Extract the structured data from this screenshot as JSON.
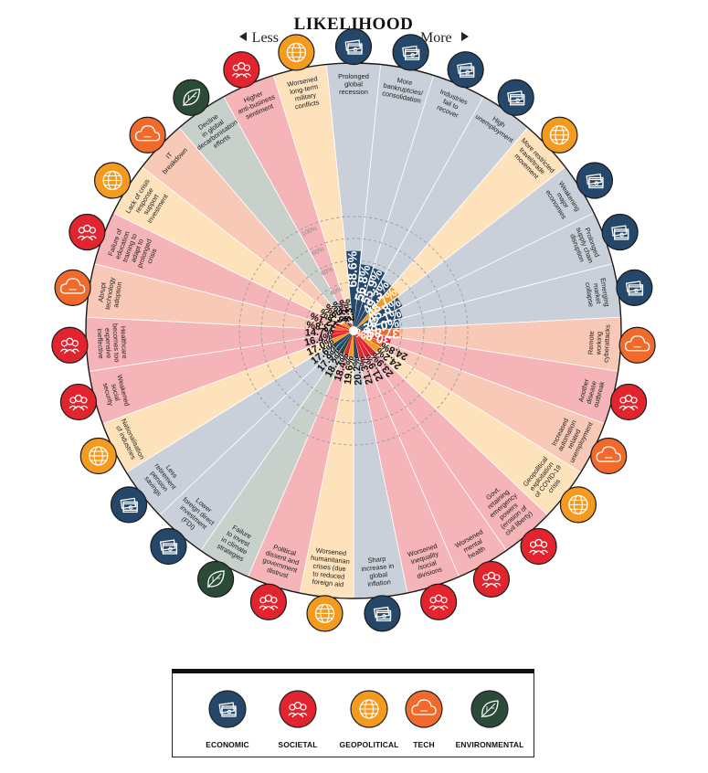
{
  "header": {
    "title": "LIKELIHOOD",
    "less": "Less",
    "more": "More"
  },
  "colors": {
    "economic": "#24476a",
    "societal": "#e2242e",
    "geopolitical": "#f39a1f",
    "tech": "#f26a2b",
    "environmental": "#2c4a38",
    "bg_economic": "#c9d0d9",
    "bg_societal": "#f4b4b8",
    "bg_geopolitical": "#fde2bb",
    "bg_tech": "#f8c9b6",
    "bg_environmental": "#c8d0cb"
  },
  "categories": {
    "economic": {
      "label": "ECONOMIC",
      "icon": "banknotes-icon"
    },
    "societal": {
      "label": "SOCIETAL",
      "icon": "people-icon"
    },
    "geopolitical": {
      "label": "GEOPOLITICAL",
      "icon": "globe-icon"
    },
    "tech": {
      "label": "TECH",
      "icon": "cloud-icon"
    },
    "environmental": {
      "label": "ENVIRONMENTAL",
      "icon": "leaf-icon"
    }
  },
  "legend_order": [
    "economic",
    "societal",
    "geopolitical",
    "tech",
    "environmental"
  ],
  "chart_data": {
    "type": "bar",
    "subtype": "radial",
    "value_unit": "%",
    "ring_labels": [
      "100%",
      "80%",
      "60%",
      "40%",
      "20%"
    ],
    "ring_values": [
      100,
      80,
      60,
      40,
      20
    ],
    "categories": [
      "Prolonged global recession",
      "More bankruptcies/ consolidation",
      "Industries fail to recover",
      "High unemployment",
      "More restricted travel/trade movement",
      "Weakening major economies",
      "Prolonged supply chain disruption",
      "Emerging market collapse",
      "Remote working cyberattacks",
      "Another disease outbreak",
      "Increased automation related unemployment",
      "Geopolitical exploitation of COVID-19 crisis",
      "Govt. retaining emergency powers (erosion of civil liberty)",
      "Worsened mental health",
      "Worsened inequality /social divisions",
      "Sharp increase in global inflation",
      "Worsened humanitarian crises (due to reduced foreign aid",
      "Political dissent and government distrust",
      "Failure to invest in climate strategies",
      "Lower foreign direct investment (FDI)",
      "Less retirement pension savings",
      "Nationalisation of industries",
      "Weakened social security",
      "Healthcare becomes too expensive ineffective",
      "Abrupt technology adoption",
      "Failure of education training to adapt to prolonged crisis",
      "Lack of crisis response support investment",
      "IT breakdown",
      "Decline in global decarbonisation efforts",
      "Higher anti-business sentiment",
      "Worsened long-term military conflicts"
    ],
    "values": [
      68.6,
      56.8,
      55.9,
      49.3,
      48.7,
      45.8,
      42.1,
      38.0,
      37.8,
      30.8,
      24.8,
      24.2,
      23.9,
      21.9,
      21.3,
      20.2,
      19.6,
      18.4,
      18.2,
      17.9,
      17.6,
      17.0,
      16.4,
      14.7,
      13.8,
      12.1,
      7.8,
      6.9,
      4.6,
      3.2,
      2.3
    ],
    "value_labels": [
      "68.6%",
      "56.8%",
      "55.9%",
      "49.3%",
      "48.7%",
      "45.8%",
      "42.1%",
      "38.0%",
      "37.8%",
      "30.8%",
      "24.8%",
      "24.2%",
      "23.9%",
      "21.9%",
      "21.3%",
      "20.2%",
      "19.6%",
      "18.4%",
      "18.2%",
      "17.9%",
      "17.6%",
      "17.0%",
      "16.4%",
      "14.7%",
      "13.8%",
      "12.1%",
      "7.8%",
      "6.9%",
      "4.6%",
      "3.2%",
      "2.3%"
    ],
    "category_type": [
      "economic",
      "economic",
      "economic",
      "economic",
      "geopolitical",
      "economic",
      "economic",
      "economic",
      "tech",
      "societal",
      "tech",
      "geopolitical",
      "societal",
      "societal",
      "societal",
      "economic",
      "geopolitical",
      "societal",
      "environmental",
      "economic",
      "economic",
      "geopolitical",
      "societal",
      "societal",
      "tech",
      "societal",
      "geopolitical",
      "tech",
      "environmental",
      "societal",
      "geopolitical"
    ],
    "label_lines": [
      [
        "Prolonged",
        "global",
        "recession"
      ],
      [
        "More",
        "bankruptcies/",
        "consolidation"
      ],
      [
        "Industries",
        "fail to",
        "recover"
      ],
      [
        "High",
        "unemployment"
      ],
      [
        "More restricted",
        "travel/trade",
        "movement"
      ],
      [
        "Weakening",
        "major",
        "economies"
      ],
      [
        "Prolonged",
        "supply chain",
        "disruption"
      ],
      [
        "Emerging",
        "market",
        "collapse"
      ],
      [
        "Remote",
        "working",
        "cyberattacks"
      ],
      [
        "Another",
        "disease",
        "outbreak"
      ],
      [
        "Increased",
        "automation",
        "related",
        "unemployment"
      ],
      [
        "Geopolitical",
        "exploitation",
        "of COVID-19",
        "crisis"
      ],
      [
        "Govt.",
        "retaining",
        "emergency",
        "powers",
        "(erosion of",
        "civil liberty)"
      ],
      [
        "Worsened",
        "mental",
        "health"
      ],
      [
        "Worsened",
        "inequality",
        "/social",
        "divisions"
      ],
      [
        "Sharp",
        "increase in",
        "global",
        "inflation"
      ],
      [
        "Worsened",
        "humanitarian",
        "crises (due",
        "to reduced",
        "foreign aid"
      ],
      [
        "Political",
        "dissent and",
        "government",
        "distrust"
      ],
      [
        "Failure",
        "to invest",
        "in climate",
        "strategies"
      ],
      [
        "Lower",
        "foreign direct",
        "investment",
        "(FDI)"
      ],
      [
        "Less",
        "retirement",
        "pension",
        "savings"
      ],
      [
        "Nationalisation",
        "of industries"
      ],
      [
        "Weakened",
        "social",
        "security"
      ],
      [
        "Healthcare",
        "becomes too",
        "expensive",
        "ineffective"
      ],
      [
        "Abrupt",
        "technology",
        "adoption"
      ],
      [
        "Failure of",
        "education",
        "training to",
        "adapt to",
        "prolonged",
        "crisis"
      ],
      [
        "Lack of crisis",
        "response",
        "support",
        "investment"
      ],
      [
        "IT",
        "breakdown"
      ],
      [
        "Decline",
        "in global",
        "decarbonisation",
        "efforts"
      ],
      [
        "Higher",
        "anti-business",
        "sentiment"
      ],
      [
        "Worsened",
        "long-term",
        "military",
        "conflicts"
      ]
    ],
    "ylim": [
      0,
      100
    ],
    "grid": true,
    "legend_position": "bottom"
  }
}
